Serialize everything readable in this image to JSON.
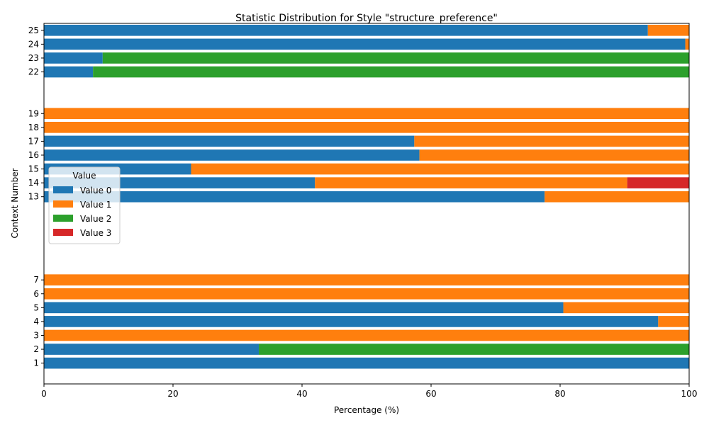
{
  "chart_data": {
    "type": "bar",
    "orientation": "horizontal",
    "stacked": true,
    "title": "Statistic Distribution for Style \"structure_preference\"",
    "xlabel": "Percentage (%)",
    "ylabel": "Context Number",
    "xlim": [
      0,
      100
    ],
    "ylim": [
      -0.5,
      25.5
    ],
    "x_ticks": [
      0,
      20,
      40,
      60,
      80,
      100
    ],
    "grid": false,
    "legend": {
      "title": "Value",
      "placement": "center-left"
    },
    "categories": [
      "1",
      "2",
      "3",
      "4",
      "5",
      "6",
      "7",
      "13",
      "14",
      "15",
      "16",
      "17",
      "18",
      "19",
      "22",
      "23",
      "24",
      "25"
    ],
    "series": [
      {
        "name": "Value 0",
        "color": "#1f77b4",
        "values": [
          100,
          33.3,
          0,
          95.2,
          80.5,
          0,
          0,
          77.6,
          42.0,
          22.8,
          58.2,
          57.4,
          0,
          0,
          7.6,
          9.1,
          99.4,
          93.6
        ]
      },
      {
        "name": "Value 1",
        "color": "#ff7f0e",
        "values": [
          0,
          0,
          100,
          4.8,
          19.5,
          100,
          100,
          22.4,
          48.4,
          77.2,
          41.8,
          42.6,
          100,
          100,
          0,
          0,
          0.6,
          6.4
        ]
      },
      {
        "name": "Value 2",
        "color": "#2ca02c",
        "values": [
          0,
          66.7,
          0,
          0,
          0,
          0,
          0,
          0,
          0,
          0,
          0,
          0,
          0,
          0,
          92.4,
          90.9,
          0,
          0
        ]
      },
      {
        "name": "Value 3",
        "color": "#d62728",
        "values": [
          0,
          0,
          0,
          0,
          0,
          0,
          0,
          0,
          9.6,
          0,
          0,
          0,
          0,
          0,
          0,
          0,
          0,
          0
        ]
      }
    ]
  }
}
